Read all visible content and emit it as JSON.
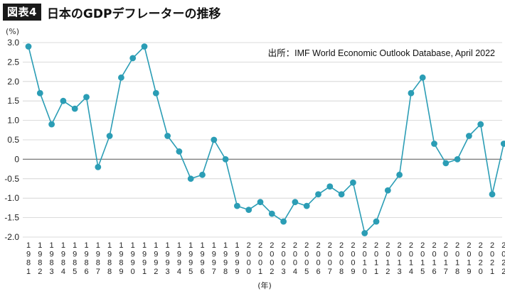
{
  "header": {
    "badge": "図表4",
    "title": "日本のGDPデフレーターの推移"
  },
  "chart_data": {
    "type": "line",
    "ylabel": "(%)",
    "xlabel": "(年)",
    "source": "出所：IMF World Economic Outlook Database, April 2022",
    "ylim": [
      -2.0,
      3.0
    ],
    "yticks": [
      "3.0",
      "2.5",
      "2.0",
      "1.5",
      "1.0",
      "0.5",
      "0",
      "-0.5",
      "-1.0",
      "-1.5",
      "-2.0"
    ],
    "ytick_values": [
      3.0,
      2.5,
      2.0,
      1.5,
      1.0,
      0.5,
      0,
      -0.5,
      -1.0,
      -1.5,
      -2.0
    ],
    "grid": "horizontal",
    "x": [
      1981,
      1982,
      1983,
      1984,
      1985,
      1986,
      1987,
      1988,
      1989,
      1990,
      1991,
      1992,
      1993,
      1994,
      1995,
      1996,
      1997,
      1998,
      1999,
      2000,
      2001,
      2002,
      2003,
      2004,
      2005,
      2006,
      2007,
      2008,
      2009,
      2010,
      2011,
      2012,
      2013,
      2014,
      2015,
      2016,
      2017,
      2018,
      2019,
      2020,
      2021,
      2022
    ],
    "series": [
      {
        "values": [
          2.9,
          1.7,
          0.9,
          1.5,
          1.3,
          1.6,
          -0.2,
          0.6,
          2.1,
          2.6,
          2.9,
          1.7,
          0.6,
          0.2,
          -0.5,
          -0.4,
          0.5,
          0.0,
          -1.2,
          -1.3,
          -1.1,
          -1.4,
          -1.6,
          -1.1,
          -1.2,
          -0.9,
          -0.7,
          -0.9,
          -0.6,
          -1.9,
          -1.6,
          -0.8,
          -0.4,
          1.7,
          2.1,
          0.4,
          -0.1,
          0.0,
          0.6,
          0.9,
          -0.9,
          0.4
        ]
      }
    ],
    "colors": {
      "line": "#2b9db5",
      "marker": "#2b9db5",
      "grid": "#cfcfcf",
      "zero": "#777777",
      "axis": "#333333"
    }
  }
}
